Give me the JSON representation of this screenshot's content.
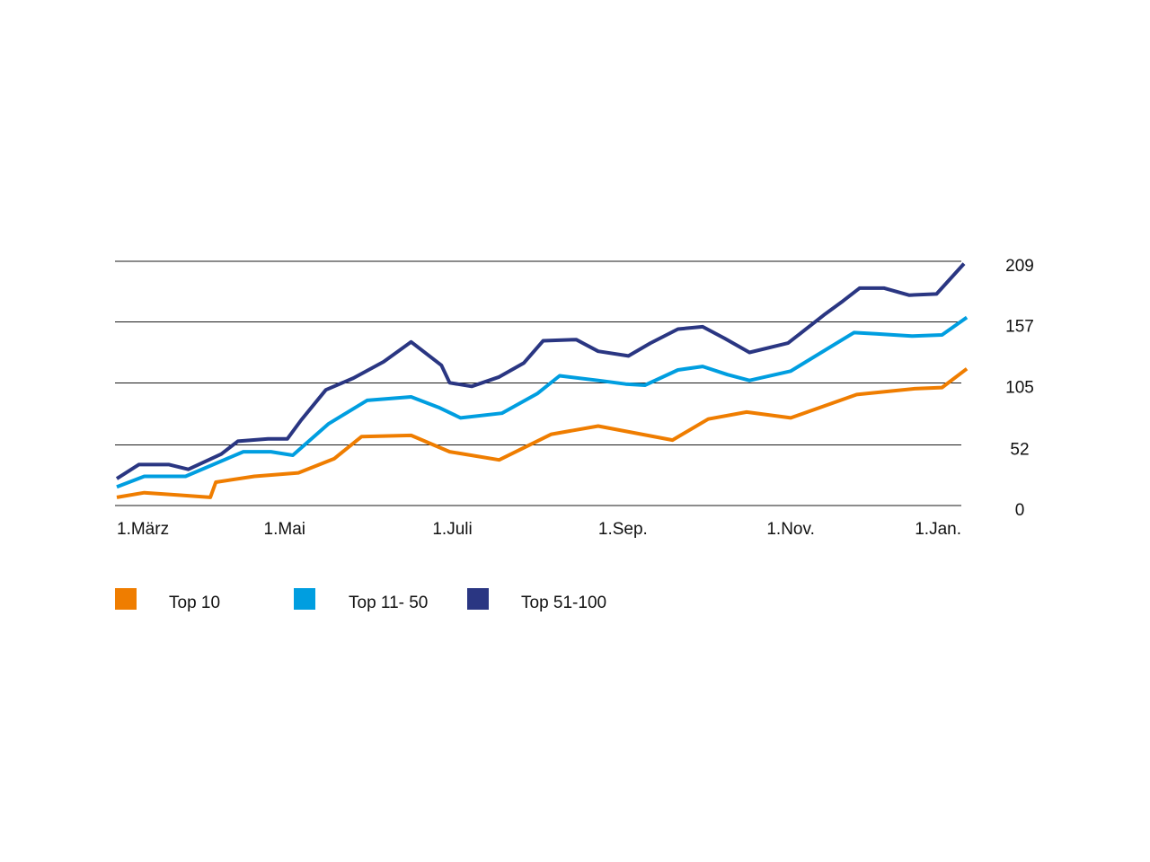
{
  "chart_data": {
    "type": "line",
    "title": "",
    "xlabel": "",
    "ylabel": "",
    "x_ticks": [
      "1.März",
      "1.Mai",
      "1.Juli",
      "1.Sep.",
      "1.Nov.",
      "1.Jan."
    ],
    "y_ticks": [
      0,
      52,
      105,
      157,
      209
    ],
    "ylim": [
      0,
      209
    ],
    "x_tick_days": [
      0,
      61,
      122,
      184,
      245,
      306
    ],
    "x_range_days": [
      0,
      308
    ],
    "grid": "horizontal",
    "legend_position": "bottom",
    "series": [
      {
        "name": "Top 10",
        "color": "#ef7d00",
        "points": [
          [
            0,
            7
          ],
          [
            10,
            11
          ],
          [
            22,
            9
          ],
          [
            34,
            7
          ],
          [
            36,
            20
          ],
          [
            50,
            25
          ],
          [
            66,
            28
          ],
          [
            79,
            40
          ],
          [
            89,
            59
          ],
          [
            107,
            60
          ],
          [
            121,
            46
          ],
          [
            139,
            39
          ],
          [
            158,
            61
          ],
          [
            175,
            68
          ],
          [
            202,
            56
          ],
          [
            215,
            74
          ],
          [
            229,
            80
          ],
          [
            245,
            75
          ],
          [
            269,
            95
          ],
          [
            290,
            100
          ],
          [
            300,
            101
          ],
          [
            309,
            117
          ]
        ]
      },
      {
        "name": "Top 11- 50",
        "color": "#009ee0",
        "points": [
          [
            0,
            16
          ],
          [
            10,
            25
          ],
          [
            25,
            25
          ],
          [
            46,
            46
          ],
          [
            56,
            46
          ],
          [
            64,
            43
          ],
          [
            77,
            70
          ],
          [
            91,
            90
          ],
          [
            107,
            93
          ],
          [
            117,
            84
          ],
          [
            125,
            75
          ],
          [
            140,
            79
          ],
          [
            153,
            96
          ],
          [
            161,
            111
          ],
          [
            175,
            107
          ],
          [
            185,
            104
          ],
          [
            192,
            103
          ],
          [
            204,
            116
          ],
          [
            213,
            119
          ],
          [
            222,
            112
          ],
          [
            230,
            107
          ],
          [
            245,
            115
          ],
          [
            268,
            148
          ],
          [
            276,
            147
          ],
          [
            289,
            145
          ],
          [
            300,
            146
          ],
          [
            309,
            161
          ]
        ]
      },
      {
        "name": "Top 51-100",
        "color": "#2a3682",
        "points": [
          [
            0,
            23
          ],
          [
            8,
            35
          ],
          [
            19,
            35
          ],
          [
            26,
            31
          ],
          [
            38,
            44
          ],
          [
            44,
            55
          ],
          [
            55,
            57
          ],
          [
            62,
            57
          ],
          [
            67,
            73
          ],
          [
            76,
            99
          ],
          [
            86,
            109
          ],
          [
            97,
            123
          ],
          [
            107,
            140
          ],
          [
            118,
            120
          ],
          [
            121,
            105
          ],
          [
            129,
            102
          ],
          [
            139,
            110
          ],
          [
            148,
            122
          ],
          [
            155,
            141
          ],
          [
            167,
            142
          ],
          [
            175,
            132
          ],
          [
            186,
            128
          ],
          [
            194,
            139
          ],
          [
            204,
            151
          ],
          [
            213,
            153
          ],
          [
            221,
            143
          ],
          [
            230,
            131
          ],
          [
            244,
            139
          ],
          [
            257,
            163
          ],
          [
            264,
            175
          ],
          [
            270,
            186
          ],
          [
            279,
            186
          ],
          [
            288,
            180
          ],
          [
            298,
            181
          ],
          [
            308,
            207
          ]
        ]
      }
    ]
  }
}
